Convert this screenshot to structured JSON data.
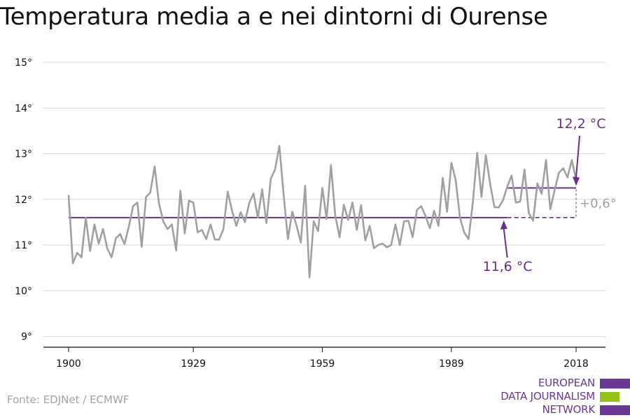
{
  "colors": {
    "line": "#a0a0a0",
    "avg": "#6a2c91",
    "purple": "#6a3796",
    "green": "#95c11f",
    "grid": "#d9d9d9",
    "axis": "#111111",
    "diff": "#a0a0a0",
    "text": "#111111",
    "source": "#a3a3a3"
  },
  "source": "Fonte: EDJNet / ECMWF",
  "logo": {
    "lines": [
      "EUROPEAN",
      "DATA JOURNALISM",
      "NETWORK"
    ]
  },
  "chart_data": {
    "type": "line",
    "title": "Temperatura media a e nei dintorni di Ourense",
    "xlabel": "",
    "ylabel": "",
    "ylim": [
      9,
      15
    ],
    "xlim": [
      1900,
      2018
    ],
    "x_ticks": [
      1900,
      1929,
      1959,
      1989,
      2018
    ],
    "y_ticks": [
      {
        "value": 9,
        "label": "9°"
      },
      {
        "value": 10,
        "label": "10°"
      },
      {
        "value": 11,
        "label": "11°"
      },
      {
        "value": 12,
        "label": "12°"
      },
      {
        "value": 13,
        "label": "13°"
      },
      {
        "value": 14,
        "label": "14°"
      },
      {
        "value": 15,
        "label": "15°"
      }
    ],
    "grid": true,
    "series": [
      {
        "x": [
          1900,
          1901,
          1902,
          1903,
          1904,
          1905,
          1906,
          1907,
          1908,
          1909,
          1910,
          1911,
          1912,
          1913,
          1914,
          1915,
          1916,
          1917,
          1918,
          1919,
          1920,
          1921,
          1922,
          1923,
          1924,
          1925,
          1926,
          1927,
          1928,
          1929,
          1930,
          1931,
          1932,
          1933,
          1934,
          1935,
          1936,
          1937,
          1938,
          1939,
          1940,
          1941,
          1942,
          1943,
          1944,
          1945,
          1946,
          1947,
          1948,
          1949,
          1950,
          1951,
          1952,
          1953,
          1954,
          1955,
          1956,
          1957,
          1958,
          1959,
          1960,
          1961,
          1962,
          1963,
          1964,
          1965,
          1966,
          1967,
          1968,
          1969,
          1970,
          1971,
          1972,
          1973,
          1974,
          1975,
          1976,
          1977,
          1978,
          1979,
          1980,
          1981,
          1982,
          1983,
          1984,
          1985,
          1986,
          1987,
          1988,
          1989,
          1990,
          1991,
          1992,
          1993,
          1994,
          1995,
          1996,
          1997,
          1998,
          1999,
          2000,
          2001,
          2002,
          2003,
          2004,
          2005,
          2006,
          2007,
          2008,
          2009,
          2010,
          2011,
          2012,
          2013,
          2014,
          2015,
          2016,
          2017,
          2018
        ],
        "values": [
          12.08,
          10.6,
          10.83,
          10.73,
          11.6,
          10.87,
          11.45,
          11.03,
          11.35,
          10.92,
          10.73,
          11.15,
          11.24,
          11.02,
          11.4,
          11.85,
          11.93,
          10.96,
          12.05,
          12.15,
          12.72,
          11.92,
          11.52,
          11.35,
          11.45,
          10.88,
          12.19,
          11.25,
          11.97,
          11.93,
          11.28,
          11.33,
          11.13,
          11.45,
          11.12,
          11.12,
          11.35,
          12.17,
          11.75,
          11.42,
          11.72,
          11.5,
          11.92,
          12.13,
          11.6,
          12.22,
          11.48,
          12.45,
          12.65,
          13.17,
          12.1,
          11.13,
          11.73,
          11.43,
          11.05,
          12.3,
          10.29,
          11.52,
          11.3,
          12.25,
          11.57,
          12.75,
          11.65,
          11.17,
          11.88,
          11.55,
          11.93,
          11.33,
          11.87,
          11.1,
          11.42,
          10.93,
          11.0,
          11.03,
          10.95,
          11.0,
          11.45,
          11.0,
          11.52,
          11.53,
          11.17,
          11.77,
          11.85,
          11.63,
          11.37,
          11.75,
          11.42,
          12.47,
          11.73,
          12.8,
          12.42,
          11.6,
          11.27,
          11.13,
          11.93,
          13.02,
          12.05,
          12.97,
          12.35,
          11.83,
          11.82,
          11.98,
          12.28,
          12.52,
          11.93,
          11.95,
          12.65,
          11.7,
          11.53,
          12.35,
          12.12,
          12.86,
          11.78,
          12.2,
          12.58,
          12.68,
          12.48,
          12.86,
          12.43
        ]
      }
    ],
    "averages": [
      {
        "label": "11,6 °C",
        "value": 11.6,
        "x_start": 1900,
        "x_solid_end": 2002,
        "x_end": 2018
      },
      {
        "label": "12,2 °C",
        "value": 12.25,
        "x_start": 2002,
        "x_end": 2018
      }
    ],
    "difference_label": "+0,6°"
  }
}
